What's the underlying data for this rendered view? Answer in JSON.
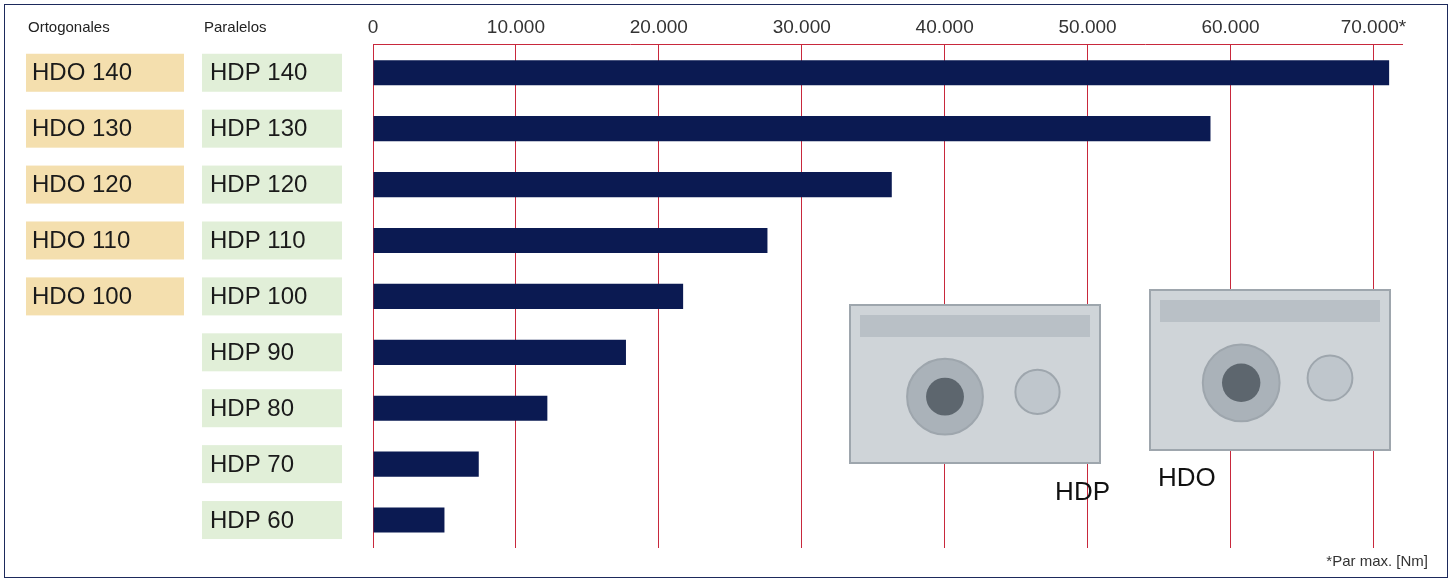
{
  "chart_data": {
    "type": "bar",
    "orientation": "horizontal",
    "categories": [
      "HDP 140",
      "HDP 130",
      "HDP 120",
      "HDP 110",
      "HDP 100",
      "HDP 90",
      "HDP 80",
      "HDP 70",
      "HDP 60"
    ],
    "categories_header": "Paralelos",
    "categories_2": [
      "HDO 140",
      "HDO 130",
      "HDO 120",
      "HDO 110",
      "HDO 100",
      null,
      null,
      null,
      null
    ],
    "categories_2_header": "Ortogonales",
    "values": [
      71100,
      58600,
      36300,
      27600,
      21700,
      17700,
      12200,
      7400,
      5000
    ],
    "color": "#0b1a52",
    "xlim": [
      0,
      72000
    ],
    "xticks": [
      0,
      {
        "value": 10000,
        "label": "10.000"
      },
      {
        "value": 20000,
        "label": "20.000"
      },
      {
        "value": 30000,
        "label": "30.000"
      },
      {
        "value": 40000,
        "label": "40.000"
      },
      {
        "value": 50000,
        "label": "50.000"
      },
      {
        "value": 60000,
        "label": "60.000"
      },
      {
        "value": 70000,
        "label": "70.000*"
      }
    ],
    "grid": true,
    "annotations": [
      "HDP",
      "HDO"
    ],
    "footnote": "*Par max. [Nm]"
  }
}
